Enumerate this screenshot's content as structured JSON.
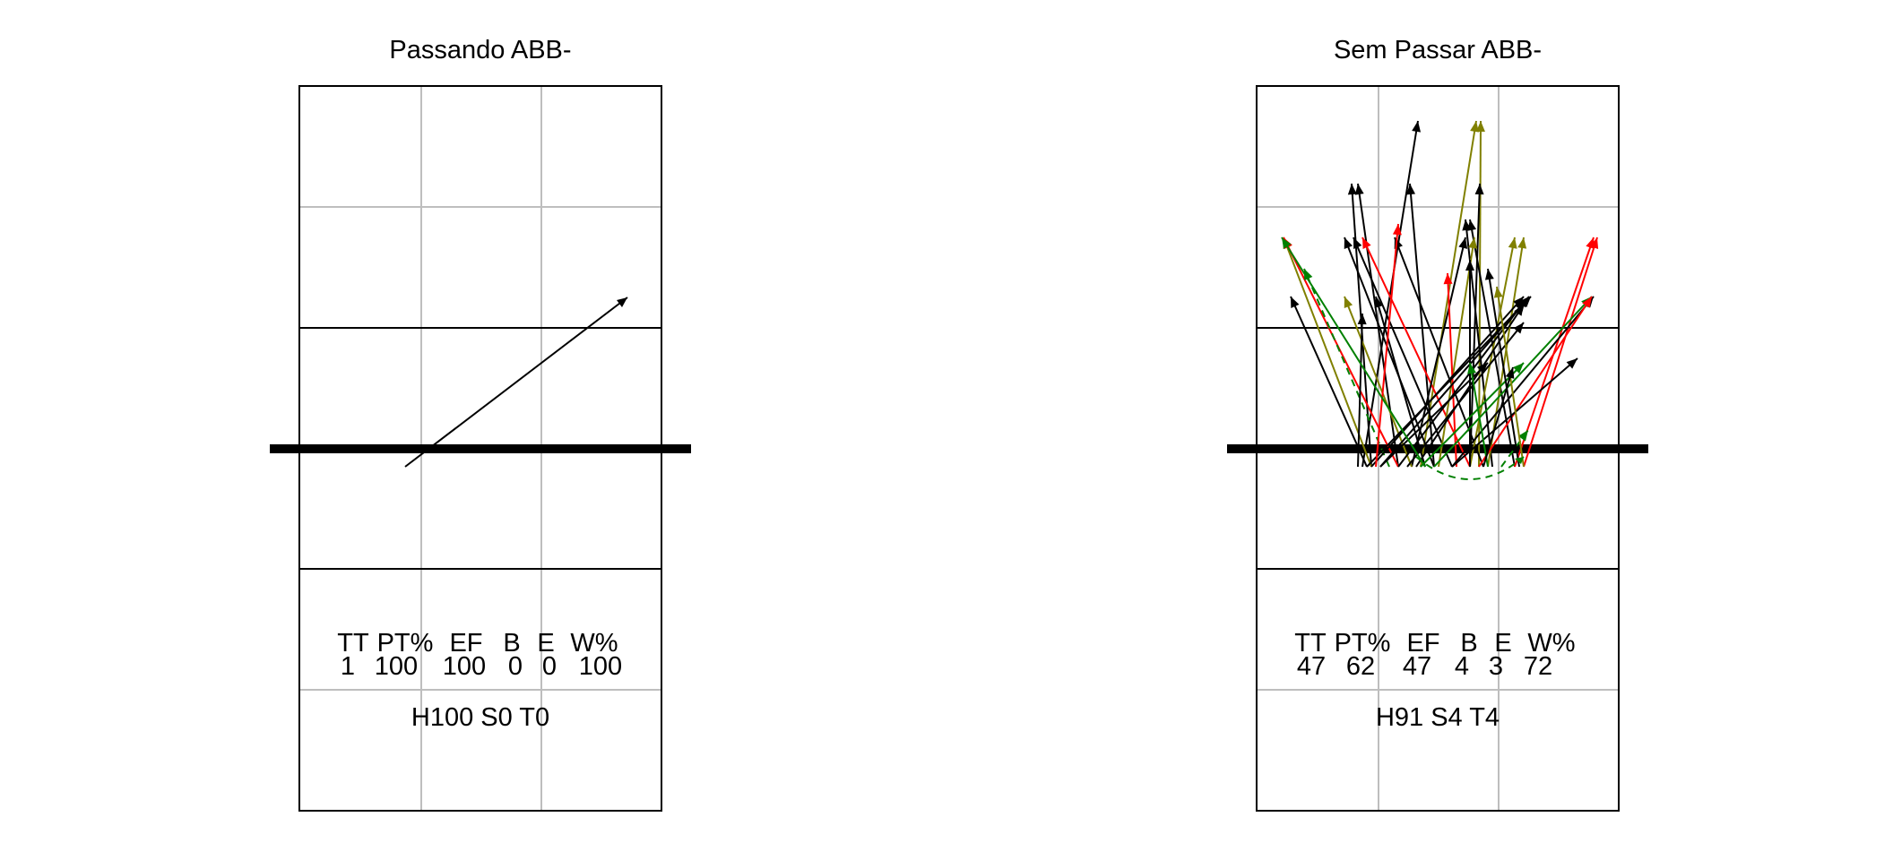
{
  "panels": [
    {
      "title": "Passando ABB-",
      "stats_headers": [
        "TT",
        "PT%",
        "EF",
        "B",
        "E",
        "W%"
      ],
      "stats_values": [
        "1",
        "100",
        "100",
        "0",
        "0",
        "100"
      ],
      "summary": "H100 S0 T0"
    },
    {
      "title": "Sem Passar ABB-",
      "stats_headers": [
        "TT",
        "PT%",
        "EF",
        "B",
        "E",
        "W%"
      ],
      "stats_values": [
        "47",
        "62",
        "47",
        "4",
        "3",
        "72"
      ],
      "summary": "H91 S4 T4"
    }
  ],
  "colors": {
    "kill": "#000000",
    "error": "#ff0000",
    "positive": "#808000",
    "blocked": "#008000",
    "grid": "#bebebe"
  }
}
